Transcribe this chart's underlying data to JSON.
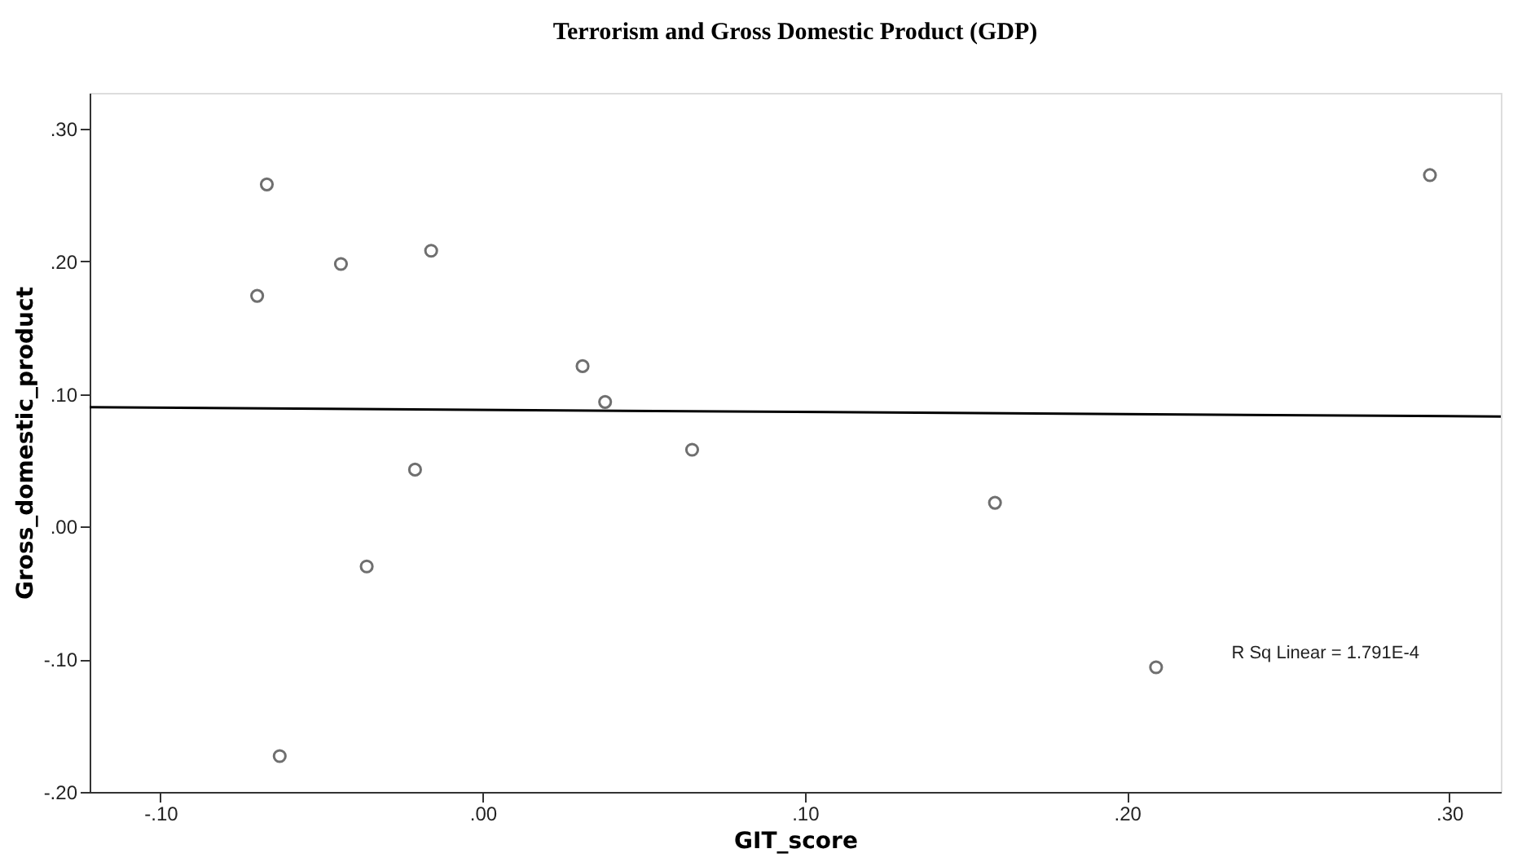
{
  "chart_data": {
    "type": "scatter",
    "title": "Terrorism and Gross Domestic Product (GDP)",
    "xlabel": "GIT_score",
    "ylabel": "Gross_domestic_product",
    "series": [
      {
        "color": "#333333",
        "marker": "circle",
        "x": [
          -0.067,
          -0.07,
          -0.044,
          -0.016,
          0.031,
          0.038,
          0.065,
          -0.021,
          -0.036,
          -0.063,
          0.294,
          0.159,
          0.209
        ],
        "values": [
          0.258,
          0.174,
          0.198,
          0.208,
          0.121,
          0.094,
          0.058,
          0.043,
          -0.03,
          -0.173,
          0.265,
          0.018,
          -0.106
        ]
      },
      {
        "type": "line",
        "color": "#000000",
        "line_style": "solid",
        "x": [
          -0.122,
          0.316
        ],
        "values": [
          0.09,
          0.083
        ]
      }
    ],
    "xlim": [
      -0.122,
      0.316
    ],
    "ylim": [
      -0.2,
      0.327
    ],
    "xticks": [
      {
        "value": -0.1,
        "label": "-.10"
      },
      {
        "value": 0.0,
        "label": ".00"
      },
      {
        "value": 0.1,
        "label": ".10"
      },
      {
        "value": 0.2,
        "label": ".20"
      },
      {
        "value": 0.3,
        "label": ".30"
      }
    ],
    "yticks": [
      {
        "value": -0.2,
        "label": "-.20"
      },
      {
        "value": -0.1,
        "label": "-.10"
      },
      {
        "value": 0.0,
        "label": ".00"
      },
      {
        "value": 0.1,
        "label": ".10"
      },
      {
        "value": 0.2,
        "label": ".20"
      },
      {
        "value": 0.3,
        "label": ".30"
      }
    ],
    "annotations": [
      "R Sq Linear = 1.791E-4"
    ],
    "grid": false
  }
}
